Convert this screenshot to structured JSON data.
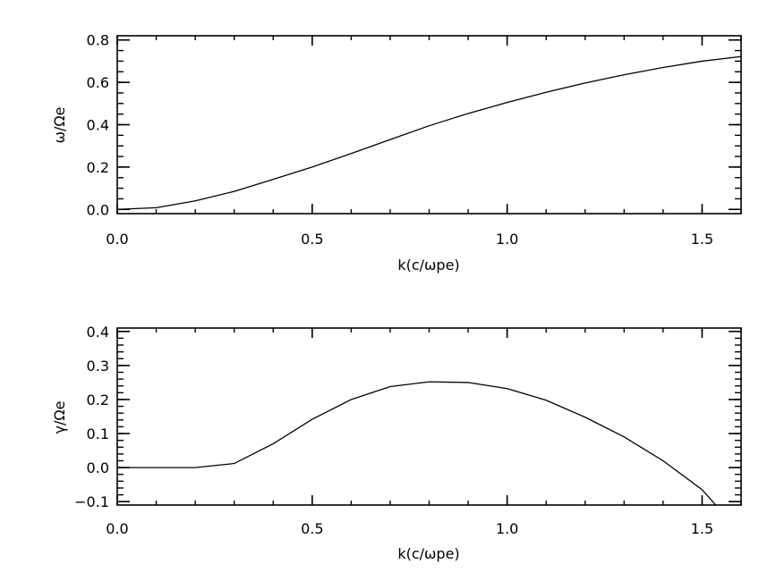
{
  "chart_data": [
    {
      "type": "line",
      "xlabel": "k(c/ωpe)",
      "ylabel": "ω/Ωe",
      "xlim": [
        0.0,
        1.6
      ],
      "ylim": [
        -0.02,
        0.82
      ],
      "xticks": [
        {
          "value": 0.0,
          "label": "0.0"
        },
        {
          "value": 0.5,
          "label": "0.5"
        },
        {
          "value": 1.0,
          "label": "1.0"
        },
        {
          "value": 1.5,
          "label": "1.5"
        }
      ],
      "yticks": [
        {
          "value": 0.0,
          "label": "0.0"
        },
        {
          "value": 0.2,
          "label": "0.2"
        },
        {
          "value": 0.4,
          "label": "0.4"
        },
        {
          "value": 0.6,
          "label": "0.6"
        },
        {
          "value": 0.8,
          "label": "0.8"
        }
      ],
      "x_minor_step": 0.1,
      "y_minor_step": 0.05,
      "grid": false,
      "series": [
        {
          "x": [
            0.0,
            0.1,
            0.2,
            0.3,
            0.4,
            0.5,
            0.6,
            0.7,
            0.8,
            0.9,
            1.0,
            1.1,
            1.2,
            1.3,
            1.4,
            1.5,
            1.6
          ],
          "y": [
            0.0,
            0.008,
            0.04,
            0.085,
            0.142,
            0.2,
            0.264,
            0.33,
            0.395,
            0.453,
            0.505,
            0.553,
            0.597,
            0.636,
            0.67,
            0.7,
            0.722
          ]
        }
      ]
    },
    {
      "type": "line",
      "xlabel": "k(c/ωpe)",
      "ylabel": "γ/Ωe",
      "xlim": [
        0.0,
        1.6
      ],
      "ylim": [
        -0.11,
        0.41
      ],
      "xticks": [
        {
          "value": 0.0,
          "label": "0.0"
        },
        {
          "value": 0.5,
          "label": "0.5"
        },
        {
          "value": 1.0,
          "label": "1.0"
        },
        {
          "value": 1.5,
          "label": "1.5"
        }
      ],
      "yticks": [
        {
          "value": -0.1,
          "label": "−0.1"
        },
        {
          "value": 0.0,
          "label": "0.0"
        },
        {
          "value": 0.1,
          "label": "0.1"
        },
        {
          "value": 0.2,
          "label": "0.2"
        },
        {
          "value": 0.3,
          "label": "0.3"
        },
        {
          "value": 0.4,
          "label": "0.4"
        }
      ],
      "x_minor_step": 0.1,
      "y_minor_step": 0.02,
      "grid": false,
      "series": [
        {
          "x": [
            0.0,
            0.1,
            0.2,
            0.3,
            0.4,
            0.5,
            0.6,
            0.7,
            0.8,
            0.9,
            1.0,
            1.1,
            1.2,
            1.3,
            1.4,
            1.5,
            1.535
          ],
          "y": [
            0.0,
            0.0,
            0.0,
            0.012,
            0.07,
            0.142,
            0.2,
            0.238,
            0.252,
            0.25,
            0.232,
            0.198,
            0.148,
            0.09,
            0.02,
            -0.065,
            -0.11
          ]
        }
      ]
    }
  ]
}
